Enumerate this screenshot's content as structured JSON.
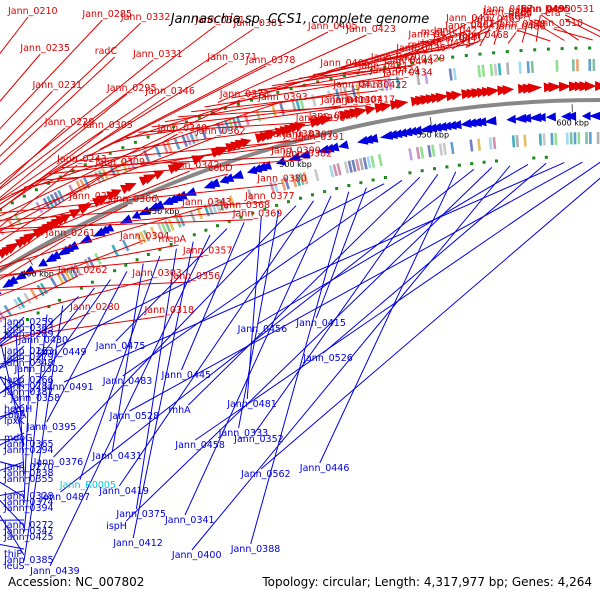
{
  "title": "Jannaschia sp. CCS1, complete genome",
  "footer": {
    "accession": "Accession: NC_007802",
    "topology": "Topology: circular; Length: 4,317,977 bp; Genes: 4,264"
  },
  "colors": {
    "forward": "#e00000",
    "reverse": "#0000e0",
    "rna": "#00c8d8",
    "backbone": "#888888",
    "dots": "#1a8a1a"
  },
  "ticks": [
    "250 kbp",
    "300 kbp",
    "350 kbp",
    "400 kbp",
    "450 kbp",
    "500 kbp",
    "550 kbp",
    "600 kbp"
  ],
  "forward_labels": [
    "Jann_0210",
    "Jann_0235",
    "Jann_0231",
    "Jann_0229",
    "Jann_0243",
    "Jann_0253",
    "Jann_0261",
    "Jann_0262",
    "Jann_0280",
    "Jann_0285",
    "radC",
    "Jann_0295",
    "Jann_0305",
    "Jann_0309",
    "Jann_0306",
    "Jann_0304",
    "Jann_0303",
    "Jann_0318",
    "Jann_0332",
    "Jann_0331",
    "Jann_0346",
    "Jann_0340",
    "Jann_0342",
    "Jann_0343",
    "mepA",
    "Jann_0356",
    "Jann_0357",
    "Jann_0361",
    "Jann_0371",
    "Jann_0373",
    "Jann_0362",
    "cobD",
    "Jann_0368",
    "Jann_0369",
    "Jann_0377",
    "Jann_0380",
    "Jann_0381",
    "Jann_0378",
    "Jann_0393",
    "Jann_0383",
    "Jann_0382",
    "Jann_0391",
    "Jann_0390",
    "Jann_0397",
    "Jann_0396",
    "Jann_0405",
    "Jann_0406",
    "Jann_0407",
    "Jann_0414",
    "Jann_0413",
    "Jann_0418",
    "Jann_0417",
    "Jann_0422",
    "Jann_0424",
    "Jann_0423",
    "Jann_0421",
    "Jann_0420",
    "Jann_0434",
    "Jann_0429",
    "rplT",
    "Jann_0444",
    "Jann_0436",
    "Jann_0435",
    "mscL",
    "Jann_0441",
    "Jann_0464",
    "Jann_0433",
    "Jann_0427",
    "Jann_0437",
    "rpmI",
    "pheT",
    "Jann_0455",
    "Jann_0468",
    "Jann_0469",
    "Jann_0467",
    "Jann_0466",
    "greA",
    "Jann_0495",
    "Jann_0479",
    "acpS",
    "Jann_0490",
    "Jann_0510",
    "era",
    "Jann_0531"
  ],
  "reverse_labels": [
    "Jann_0259",
    "Jann_0263",
    "Jann_0266",
    "hemH",
    "mdoG",
    "Jann_0270",
    "Jann_0328",
    "Jann_0272",
    "thiP",
    "Jann_0363",
    "Jann_0279",
    "Jann_0287",
    "tbpA",
    "Jann_0365",
    "Jann_0338",
    "Jann_0374",
    "Jann_0347",
    "Jann_0385",
    "Jann_0289",
    "Jann_0348",
    "Jann_0387",
    "lpxK",
    "Jann_0294",
    "Jann_0355",
    "Jann_0394",
    "Jann_0425",
    "leuS",
    "Jann_0430",
    "Jann_0302",
    "Jann_0358",
    "Jann_0395",
    "Jann_0431",
    "Jann_R0005",
    "Jann_0375",
    "Jann_0412",
    "Jann_0439",
    "Jann_0475",
    "Jann_0445",
    "Jann_0481",
    "Jann_0333",
    "Jann_0376",
    "Jann_0419",
    "Jann_0341",
    "Jann_0388",
    "Jann_0415",
    "Jann_0449",
    "Jann_0483",
    "rnhA",
    "Jann_0352",
    "Jann_0446",
    "Jann_0487",
    "ispH",
    "Jann_0400",
    "Jann_0456",
    "Jann_0526",
    "Jann_0491",
    "Jann_0528",
    "Jann_0458",
    "Jann_0562"
  ]
}
